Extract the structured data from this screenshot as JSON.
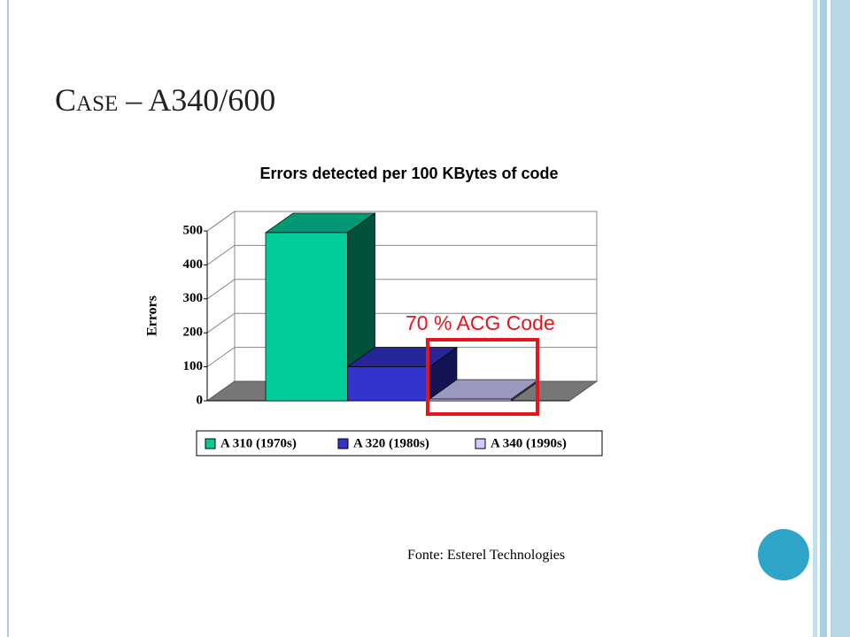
{
  "slide_title": "Case – A340/600",
  "source": "Fonte: Esterel Technologies",
  "chart_data": {
    "type": "bar3d",
    "title": "Errors detected per 100 KBytes of code",
    "y_label": "Errors",
    "annotation": "70 % ACG Code",
    "categories": [
      null
    ],
    "series": [
      {
        "name": "A 310 (1970s)",
        "color": "#00cc99",
        "values": [
          495
        ]
      },
      {
        "name": "A 320 (1980s)",
        "color": "#3333cc",
        "values": [
          100
        ]
      },
      {
        "name": "A 340 (1990s)",
        "color": "#ccccff",
        "values": [
          5
        ]
      }
    ],
    "ylim": [
      0,
      500
    ],
    "yticks": [
      0,
      100,
      200,
      300,
      400,
      500
    ],
    "grid": true,
    "legend": "bottom"
  }
}
